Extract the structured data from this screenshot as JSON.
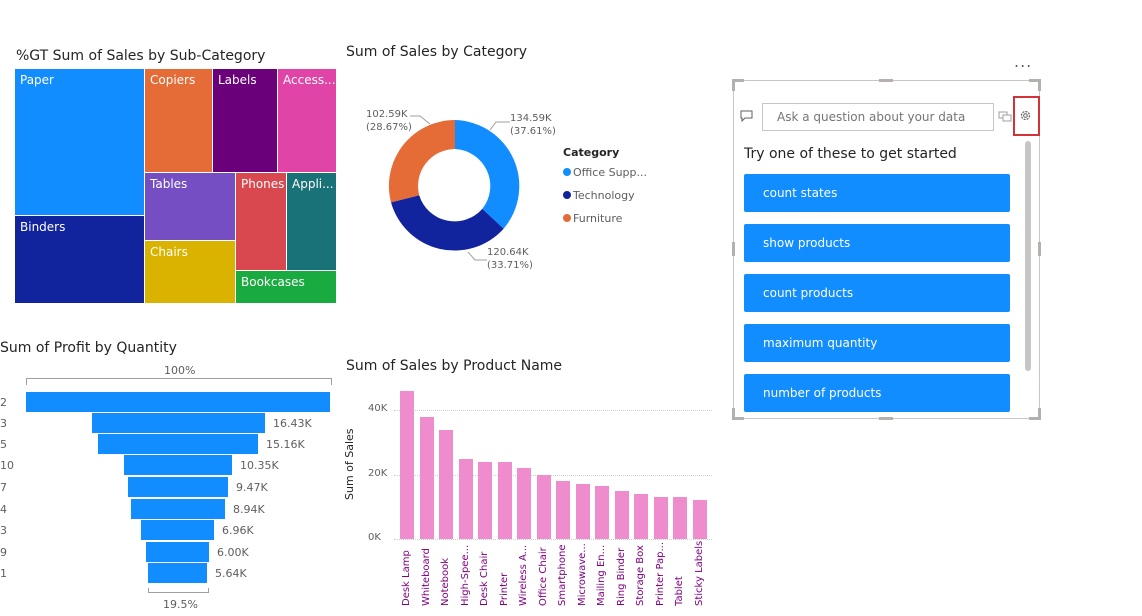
{
  "treemap": {
    "title": "%GT Sum of Sales by Sub-Category",
    "tiles": [
      {
        "label": "Paper",
        "color": "#118dff"
      },
      {
        "label": "Binders",
        "color": "#12239e"
      },
      {
        "label": "Copiers",
        "color": "#e66c37"
      },
      {
        "label": "Labels",
        "color": "#6b007b"
      },
      {
        "label": "Access...",
        "color": "#e044a7"
      },
      {
        "label": "Tables",
        "color": "#744ec2"
      },
      {
        "label": "Phones",
        "color": "#d9484f"
      },
      {
        "label": "Appli...",
        "color": "#197278"
      },
      {
        "label": "Chairs",
        "color": "#d9b300"
      },
      {
        "label": "Bookcases",
        "color": "#1aab40"
      }
    ]
  },
  "donut": {
    "title": "Sum of Sales by Category",
    "slices": [
      {
        "name": "Office Supp...",
        "value": "134.59K",
        "pct": "(37.61%)",
        "color": "#118dff"
      },
      {
        "name": "Technology",
        "value": "120.64K",
        "pct": "(33.71%)",
        "color": "#12239e"
      },
      {
        "name": "Furniture",
        "value": "102.59K",
        "pct": "(28.67%)",
        "color": "#e66c37"
      }
    ],
    "legend_title": "Category"
  },
  "funnel": {
    "title": "Sum of Profit by Quantity",
    "top_pct": "100%",
    "bottom_pct": "19.5%",
    "rows": [
      {
        "cat": "2",
        "value": ""
      },
      {
        "cat": "3",
        "value": "16.43K"
      },
      {
        "cat": "5",
        "value": "15.16K"
      },
      {
        "cat": "10",
        "value": "10.35K"
      },
      {
        "cat": "7",
        "value": "9.47K"
      },
      {
        "cat": "4",
        "value": "8.94K"
      },
      {
        "cat": "3",
        "value": "6.96K"
      },
      {
        "cat": "9",
        "value": "6.00K"
      },
      {
        "cat": "1",
        "value": "5.64K"
      }
    ]
  },
  "chart_data": {
    "type": "bar",
    "title": "Sum of Sales by Product Name",
    "ylabel": "Sum of Sales",
    "ylim": [
      0,
      50000
    ],
    "yticks": [
      "0K",
      "20K",
      "40K"
    ],
    "categories": [
      "Desk Lamp",
      "Whiteboard",
      "Notebook",
      "High-Spee...",
      "Desk Chair",
      "Printer",
      "Wireless A...",
      "Office Chair",
      "Smartphone",
      "Microwave...",
      "Mailing En...",
      "Ring Binder",
      "Storage Box",
      "Printer Pap...",
      "Tablet",
      "Sticky Labels"
    ],
    "values": [
      46000,
      38000,
      34000,
      25000,
      24000,
      24000,
      22000,
      20000,
      18000,
      17000,
      16500,
      15000,
      14000,
      13000,
      13000,
      12000
    ],
    "color": "#ee8ccd"
  },
  "qa": {
    "more_options": "...",
    "placeholder": "Ask a question about your data",
    "suggest_title": "Try one of these to get started",
    "suggestions": [
      "count states",
      "show products",
      "count products",
      "maximum quantity",
      "number of products"
    ]
  }
}
